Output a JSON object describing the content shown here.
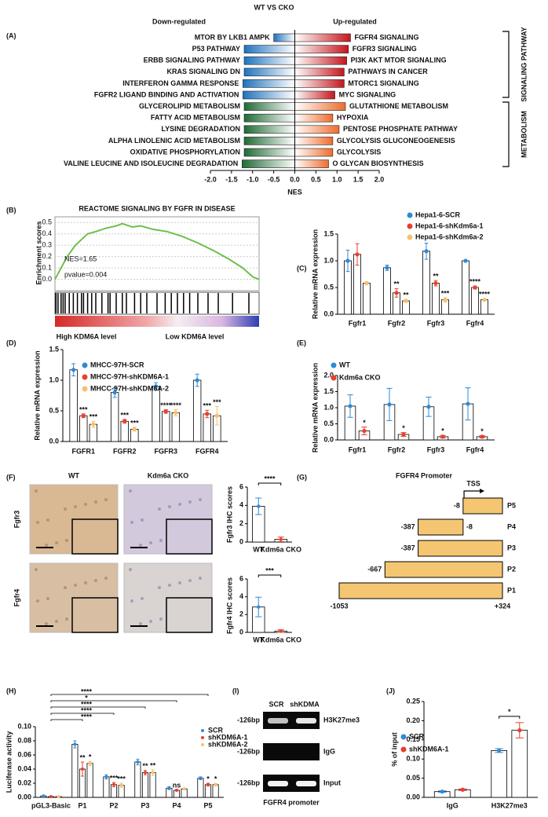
{
  "chart_data": [
    {
      "panel": "(A)",
      "type": "diverging-bar",
      "title": "WT VS CKO",
      "xlabel": "NES",
      "xlim": [
        -2,
        2
      ],
      "xticks": [
        {
          "value": -2,
          "label": "-2.0"
        },
        -1.5,
        {
          "value": -1,
          "label": "-1.0"
        },
        -0.5,
        {
          "value": 0,
          "label": "0.0"
        },
        0.5,
        {
          "value": 1,
          "label": "1.0"
        },
        1.5,
        {
          "value": 2,
          "label": "2.0"
        }
      ],
      "series": [
        {
          "name": "Down-regulated",
          "categories": [
            "MTOR BY LKB1 AMPK",
            "P53 PATHWAY",
            "ERBB SIGNALING PATHWAY",
            "KRAS SIGNALING DN",
            "INTERFERON GAMMA RESPONSE",
            "FGFR2 LIGAND BINDING AND ACTIVATION",
            "GLYCEROLIPID METABOLISM",
            "FATTY ACID METABOLISM",
            "LYSINE DEGRADATION",
            "ALPHA LINOLENIC ACID METABOLISM",
            "OXIDATIVE PHOSPHORYLATION",
            "VALINE LEUCINE AND ISOLEUCINE DEGRADATION"
          ],
          "values": [
            -0.5,
            -1.2,
            -1.2,
            -1.2,
            -1.23,
            -1.23,
            -1.2,
            -1.2,
            -1.2,
            -1.2,
            -1.2,
            -1.25
          ],
          "colors": [
            "#1e73be",
            "#1e73be",
            "#1e73be",
            "#1e73be",
            "#1e73be",
            "#1e73be",
            "#1f6b35",
            "#1f6b35",
            "#1f6b35",
            "#1f6b35",
            "#1f6b35",
            "#1f6b35"
          ]
        },
        {
          "name": "Up-regulated",
          "categories": [
            "FGFR4 SIGNALING",
            "FGFR3 SIGNALING",
            "PI3K AKT MTOR SIGNALING",
            "PATHWAYS IN CANCER",
            "MTORC1 SIGNALING",
            "MYC SIGNALING",
            "GLUTATHIONE METABOLISM",
            "HYPOXIA",
            "PENTOSE PHOSPHATE PATHWAY",
            "GLYCOLYSIS GLUCONEOGENESIS",
            "GLYCOLYSIS",
            "O GLYCAN BIOSYNTHESIS"
          ],
          "values": [
            1.32,
            1.27,
            1.23,
            1.17,
            1.17,
            0.95,
            1.2,
            0.9,
            1.05,
            0.9,
            0.9,
            0.8
          ],
          "colors": [
            "#c4161c",
            "#c4161c",
            "#c4161c",
            "#c4161c",
            "#c4161c",
            "#c4161c",
            "#ef6c2c",
            "#ef6c2c",
            "#ef6c2c",
            "#ef6c2c",
            "#ef6c2c",
            "#ef6c2c"
          ]
        }
      ],
      "groups": [
        {
          "label": "SIGNALING PATHWAY"
        },
        {
          "label": "METABOLISM"
        }
      ]
    },
    {
      "panel": "(B)",
      "type": "gsea",
      "title": "REACTOME SIGNALING BY FGFR IN DISEASE",
      "ylabel": "Enrichment scores",
      "xlim": [
        0,
        1
      ],
      "ylim": [
        -0.1,
        0.55
      ],
      "yticks": [
        {
          "value": 0,
          "label": "0.0"
        },
        0.1,
        0.2,
        0.3,
        0.4,
        0.5
      ],
      "grid": true,
      "color": "#6cc04a",
      "x": [
        0,
        0.03,
        0.06,
        0.1,
        0.13,
        0.16,
        0.2,
        0.25,
        0.3,
        0.33,
        0.38,
        0.42,
        0.48,
        0.55,
        0.62,
        0.7,
        0.78,
        0.85,
        0.92,
        0.97,
        1
      ],
      "values": [
        0,
        0.1,
        0.2,
        0.3,
        0.35,
        0.4,
        0.42,
        0.45,
        0.47,
        0.49,
        0.46,
        0.47,
        0.44,
        0.42,
        0.38,
        0.32,
        0.25,
        0.18,
        0.1,
        0.02,
        0
      ],
      "hits": [
        0.005,
        0.015,
        0.03,
        0.04,
        0.05,
        0.07,
        0.09,
        0.11,
        0.13,
        0.14,
        0.16,
        0.18,
        0.2,
        0.23,
        0.26,
        0.27,
        0.3,
        0.33,
        0.35,
        0.39,
        0.42,
        0.45,
        0.5,
        0.54,
        0.57,
        0.6,
        0.63,
        0.66,
        0.7,
        0.75,
        0.8,
        0.87,
        0.95
      ],
      "annotations": [
        "NES=1.65",
        "pvalue=0.004"
      ],
      "rank_labels": [
        "High KDM6A level",
        "Low KDM6A level"
      ]
    },
    {
      "panel": "(C)",
      "type": "bar",
      "ylabel": "Relative mRNA expression",
      "categories": [
        "Fgfr1",
        "Fgfr2",
        "Fgfr3",
        "Fgfr4"
      ],
      "ylim": [
        0,
        1.5
      ],
      "yticks": [
        {
          "value": 0,
          "label": "0.0"
        },
        0.5,
        {
          "value": 1,
          "label": "1.0"
        },
        1.5
      ],
      "series": [
        {
          "name": "Hepa1-6-SCR",
          "color": "#2f8ad6",
          "values": [
            1.0,
            0.87,
            1.18,
            1.0
          ],
          "errors": [
            0.2,
            0.05,
            0.15,
            0.01
          ]
        },
        {
          "name": "Hepa1-6-shKdm6a-1",
          "color": "#e8402e",
          "values": [
            1.12,
            0.4,
            0.58,
            0.5
          ],
          "errors": [
            0.2,
            0.08,
            0.05,
            0.03
          ],
          "sig": [
            null,
            "**",
            "**",
            "****"
          ]
        },
        {
          "name": "Hepa1-6-shKdm6a-2",
          "color": "#f5c26a",
          "values": [
            0.58,
            0.25,
            0.27,
            0.27
          ],
          "errors": [
            0.03,
            0.03,
            0.04,
            0.02
          ],
          "sig": [
            null,
            "**",
            "***",
            "****"
          ]
        }
      ]
    },
    {
      "panel": "(D)",
      "type": "bar",
      "ylabel": "Relative mRNA expression",
      "categories": [
        "FGFR1",
        "FGFR2",
        "FGFR3",
        "FGFR4"
      ],
      "ylim": [
        0,
        1.5
      ],
      "yticks": [
        {
          "value": 0,
          "label": "0.0"
        },
        0.5,
        {
          "value": 1,
          "label": "1.0"
        },
        1.5
      ],
      "series": [
        {
          "name": "MHCC-97H-SCR",
          "color": "#2f8ad6",
          "values": [
            1.17,
            0.8,
            0.9,
            1.0
          ],
          "errors": [
            0.1,
            0.08,
            0.06,
            0.1
          ]
        },
        {
          "name": "MHCC-97H-shKDM6A-1",
          "color": "#e8402e",
          "values": [
            0.42,
            0.33,
            0.49,
            0.45
          ],
          "errors": [
            0.03,
            0.03,
            0.03,
            0.06
          ],
          "sig": [
            "***",
            "***",
            "****",
            "***"
          ]
        },
        {
          "name": "MHCC-97H-shKDM6A-2",
          "color": "#f5c26a",
          "values": [
            0.28,
            0.2,
            0.47,
            0.42
          ],
          "errors": [
            0.05,
            0.03,
            0.05,
            0.15
          ],
          "sig": [
            "***",
            "***",
            "****",
            "***"
          ]
        }
      ]
    },
    {
      "panel": "(E)",
      "type": "bar",
      "ylabel": "Relative mRNA expression",
      "categories": [
        "Fgfr1",
        "Fgfr2",
        "Fgfr3",
        "Fgfr4"
      ],
      "ylim": [
        0,
        2
      ],
      "yticks": [
        {
          "value": 0,
          "label": "0.0"
        },
        0.5,
        {
          "value": 1,
          "label": "1.0"
        },
        1.5,
        {
          "value": 2,
          "label": "2.0"
        }
      ],
      "series": [
        {
          "name": "WT",
          "color": "#2f8ad6",
          "values": [
            1.05,
            1.1,
            1.03,
            1.12
          ],
          "errors": [
            0.35,
            0.5,
            0.3,
            0.5
          ]
        },
        {
          "name": "Kdm6a CKO",
          "color": "#e8402e",
          "values": [
            0.28,
            0.17,
            0.1,
            0.1
          ],
          "errors": [
            0.12,
            0.06,
            0.04,
            0.03
          ],
          "sig": [
            "*",
            "*",
            "*",
            "*"
          ]
        }
      ]
    },
    {
      "panel": "(F)",
      "type": "ihc",
      "columns": [
        "WT",
        "Kdm6a CKO"
      ],
      "rows": [
        "Fgfr3",
        "Fgfr4"
      ]
    },
    {
      "type": "bar",
      "ylabel": "Fgfr3 IHC scores",
      "categories": [
        "WT",
        "Kdm6a CKO"
      ],
      "ylim": [
        0,
        6
      ],
      "yticks": [
        0,
        2,
        4,
        6
      ],
      "values": [
        3.9,
        0.3
      ],
      "errors": [
        0.9,
        0.25
      ],
      "colors": [
        "#2f8ad6",
        "#e8402e"
      ],
      "compare_label": "****"
    },
    {
      "type": "bar",
      "ylabel": "Fgfr4 IHC scores",
      "categories": [
        "WT",
        "Kdm6a CKO"
      ],
      "ylim": [
        0,
        6
      ],
      "yticks": [
        0,
        2,
        4,
        6
      ],
      "values": [
        2.85,
        0.15
      ],
      "errors": [
        1.1,
        0.15
      ],
      "colors": [
        "#2f8ad6",
        "#e8402e"
      ],
      "compare_label": "***"
    },
    {
      "panel": "(G)",
      "type": "promoter",
      "title": "FGFR4 Promoter",
      "marker": "TSS",
      "color": "#f5c672",
      "names": [
        "P1",
        "P2",
        "P3",
        "P4",
        "P5"
      ],
      "starts": [
        -1053,
        -667,
        -387,
        -387,
        -8
      ],
      "ends": [
        324,
        324,
        324,
        -8,
        324
      ],
      "end_labels": [
        "+324",
        null,
        null,
        "-8",
        null
      ]
    },
    {
      "panel": "(H)",
      "type": "bar",
      "ylabel": "Luciferase activity",
      "categories": [
        "pGL3-Basic",
        "P1",
        "P2",
        "P3",
        "P4",
        "P5"
      ],
      "ylim": [
        0,
        0.1
      ],
      "yticks": [
        {
          "value": 0,
          "label": "0.00"
        },
        0.02,
        0.04,
        0.06,
        0.08,
        {
          "value": 0.1,
          "label": "0.10"
        }
      ],
      "series": [
        {
          "name": "SCR",
          "color": "#2f8ad6",
          "values": [
            0.002,
            0.075,
            0.029,
            0.05,
            0.013,
            0.027
          ],
          "errors": [
            0.001,
            0.005,
            0.003,
            0.004,
            0.002,
            0.002
          ]
        },
        {
          "name": "shKDM6A-1",
          "color": "#e8402e",
          "values": [
            0.001,
            0.04,
            0.018,
            0.035,
            0.01,
            0.018
          ],
          "errors": [
            0.001,
            0.01,
            0.003,
            0.003,
            0.001,
            0.002
          ],
          "sig": [
            null,
            "**",
            "***",
            "**",
            "ns",
            "*"
          ]
        },
        {
          "name": "shKDM6A-2",
          "color": "#f5c26a",
          "values": [
            0.001,
            0.048,
            0.017,
            0.035,
            0.012,
            0.018
          ],
          "errors": [
            0.001,
            0.003,
            0.003,
            0.004,
            0.001,
            0.002
          ],
          "sig": [
            null,
            "*",
            "***",
            "**",
            null,
            "*"
          ]
        }
      ],
      "bracket_labels": [
        null,
        "****",
        "****",
        "****",
        "*",
        "****"
      ]
    },
    {
      "panel": "(I)",
      "type": "gel",
      "lanes": [
        "SCR",
        "shKDMA"
      ],
      "rows": [
        {
          "size": "-126bp",
          "label": "H3K27me3"
        },
        {
          "size": "-126bp",
          "label": "IgG"
        },
        {
          "size": "-126bp",
          "label": "Input"
        }
      ],
      "xlabel": "FGFR4 promoter"
    },
    {
      "panel": "(J)",
      "type": "bar",
      "ylabel": "% of input",
      "categories": [
        "IgG",
        "H3K27me3"
      ],
      "ylim": [
        0,
        0.25
      ],
      "yticks": [
        {
          "value": 0,
          "label": "0.00"
        },
        0.05,
        {
          "value": 0.1,
          "label": "0.10"
        },
        0.15,
        {
          "value": 0.2,
          "label": "0.20"
        },
        0.25
      ],
      "series": [
        {
          "name": "SCR",
          "color": "#2f8ad6",
          "values": [
            0.015,
            0.122
          ],
          "errors": [
            0.002,
            0.005
          ]
        },
        {
          "name": "shKDM6A-1",
          "color": "#e8402e",
          "values": [
            0.02,
            0.175
          ],
          "errors": [
            0.002,
            0.02
          ]
        }
      ],
      "compare_label": "*"
    }
  ]
}
